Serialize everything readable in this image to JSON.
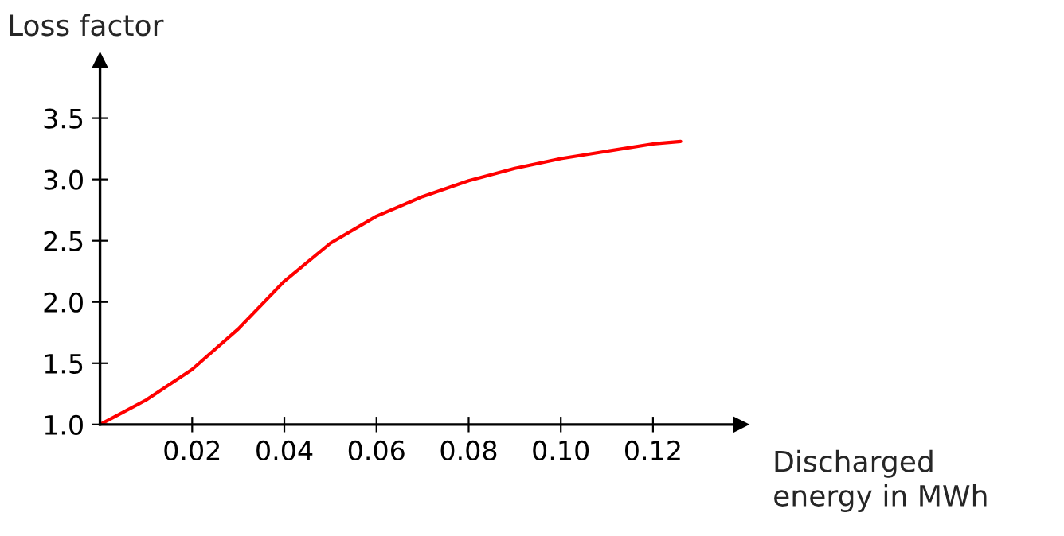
{
  "chart_data": {
    "type": "line",
    "xlabel": "Discharged\nenergy in MWh",
    "ylabel": "Loss factor",
    "x": [
      0,
      0.01,
      0.02,
      0.03,
      0.04,
      0.05,
      0.06,
      0.07,
      0.08,
      0.09,
      0.1,
      0.11,
      0.12,
      0.126
    ],
    "series": [
      {
        "color": "#ff0000",
        "values": [
          1.0,
          1.2,
          1.45,
          1.78,
          2.17,
          2.48,
          2.7,
          2.86,
          2.99,
          3.09,
          3.17,
          3.23,
          3.29,
          3.31
        ]
      }
    ],
    "xlim": [
      0,
      0.139
    ],
    "ylim": [
      1.0,
      3.97
    ],
    "xticks": [
      0.02,
      0.04,
      0.06,
      0.08,
      {
        "value": 0.1,
        "label": "0.10"
      },
      0.12
    ],
    "yticks": [
      {
        "value": 1,
        "label": "1.0"
      },
      1.5,
      {
        "value": 2,
        "label": "2.0"
      },
      2.5,
      {
        "value": 3,
        "label": "3.0"
      },
      3.5
    ],
    "grid": false,
    "legend": false,
    "marker": "none",
    "line_style": "solid"
  }
}
